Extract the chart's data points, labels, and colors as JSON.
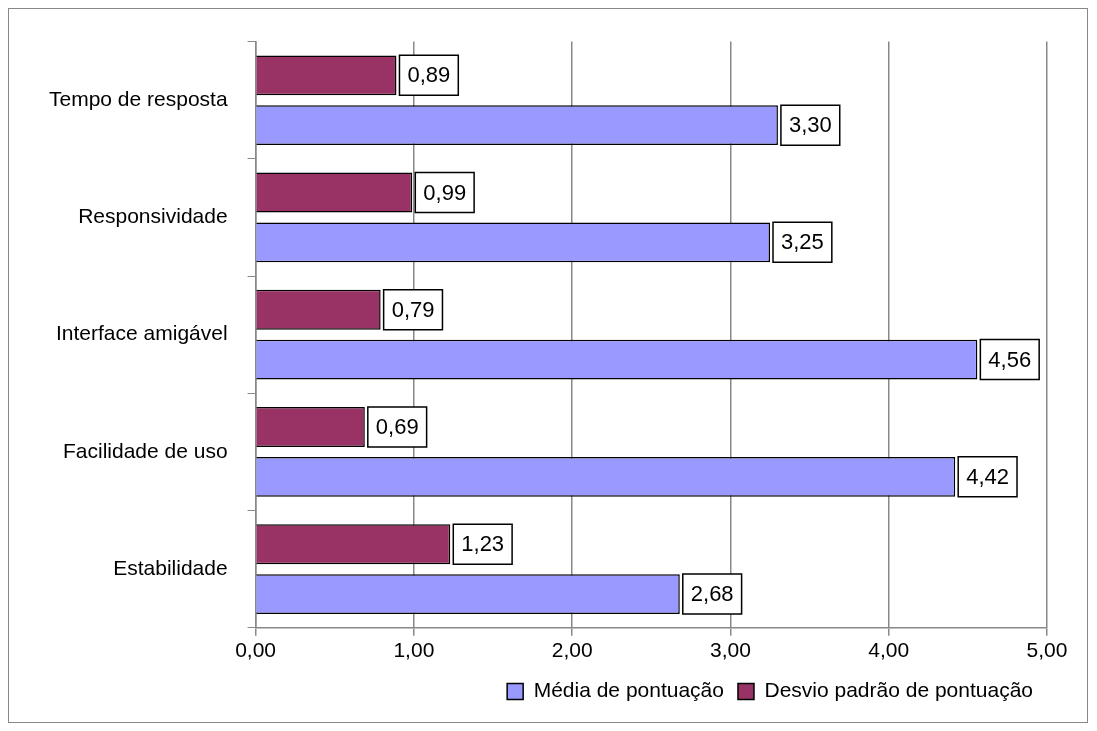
{
  "chart_data": {
    "type": "bar",
    "orientation": "horizontal",
    "categories": [
      "Tempo de resposta",
      "Responsividade",
      "Interface amigável",
      "Facilidade de uso",
      "Estabilidade"
    ],
    "series": [
      {
        "name": "Média de pontuação",
        "color": "#9999ff",
        "values": [
          3.3,
          3.25,
          4.56,
          4.42,
          2.68
        ],
        "value_labels": [
          "3,30",
          "3,25",
          "4,56",
          "4,42",
          "2,68"
        ]
      },
      {
        "name": "Desvio padrão de pontuação",
        "color": "#993366",
        "values": [
          0.89,
          0.99,
          0.79,
          0.69,
          1.23
        ],
        "value_labels": [
          "0,89",
          "0,99",
          "0,79",
          "0,69",
          "1,23"
        ]
      }
    ],
    "xlim": [
      0,
      5
    ],
    "xticks": [
      {
        "value": 0,
        "label": "0,00"
      },
      {
        "value": 1,
        "label": "1,00"
      },
      {
        "value": 2,
        "label": "2,00"
      },
      {
        "value": 3,
        "label": "3,00"
      },
      {
        "value": 4,
        "label": "4,00"
      },
      {
        "value": 5,
        "label": "5,00"
      }
    ],
    "grid": "x",
    "legend": "bottom"
  }
}
